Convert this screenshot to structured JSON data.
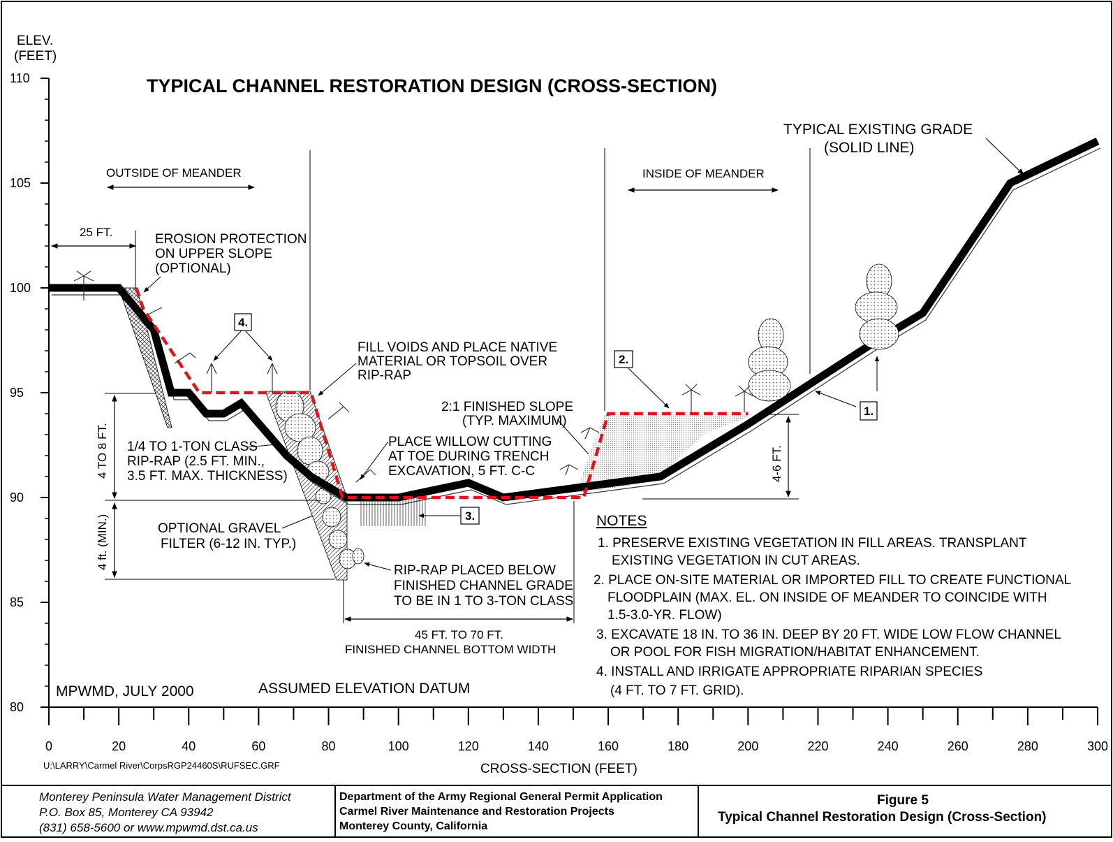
{
  "title": "TYPICAL CHANNEL RESTORATION DESIGN (CROSS-SECTION)",
  "y_axis": {
    "label_line1": "ELEV.",
    "label_line2": "(FEET)",
    "ticks": [
      "110",
      "105",
      "100",
      "95",
      "90",
      "85",
      "80"
    ]
  },
  "x_axis": {
    "label": "CROSS-SECTION (FEET)",
    "ticks": [
      "0",
      "20",
      "40",
      "60",
      "80",
      "100",
      "120",
      "140",
      "160",
      "180",
      "200",
      "220",
      "240",
      "260",
      "280",
      "300"
    ]
  },
  "labels": {
    "outside_meander": "OUTSIDE OF MEANDER",
    "inside_meander": "INSIDE OF MEANDER",
    "existing_grade_1": "TYPICAL EXISTING GRADE",
    "existing_grade_2": "(SOLID LINE)",
    "dim_25ft": "25 FT.",
    "erosion_1": "EROSION PROTECTION",
    "erosion_2": "ON UPPER SLOPE",
    "erosion_3": "(OPTIONAL)",
    "fill_voids_1": "FILL VOIDS AND PLACE NATIVE",
    "fill_voids_2": "MATERIAL OR TOPSOIL OVER",
    "fill_voids_3": "RIP-RAP",
    "finished_slope_1": "2:1 FINISHED SLOPE",
    "finished_slope_2": "(TYP. MAXIMUM)",
    "willow_1": "PLACE WILLOW CUTTING",
    "willow_2": "AT TOE DURING TRENCH",
    "willow_3": "EXCAVATION, 5 FT. C-C",
    "riprap_class_1": "1/4 TO 1-TON CLASS",
    "riprap_class_2": "RIP-RAP (2.5 FT. MIN.,",
    "riprap_class_3": "3.5 FT. MAX. THICKNESS)",
    "gravel_1": "OPTIONAL GRAVEL",
    "gravel_2": "FILTER (6-12 IN. TYP.)",
    "dim_4to8": "4 TO 8 FT.",
    "dim_4min": "4 ft. (MIN.)",
    "dim_4to6": "4-6 FT.",
    "riprap_below_1": "RIP-RAP PLACED BELOW",
    "riprap_below_2": "FINISHED CHANNEL GRADE",
    "riprap_below_3": "TO BE IN 1 TO 3-TON CLASS",
    "width_1": "45 FT. TO 70 FT.",
    "width_2": "FINISHED CHANNEL BOTTOM WIDTH",
    "mpwmd": "MPWMD, JULY 2000",
    "datum": "ASSUMED ELEVATION DATUM",
    "filepath": "U:\\LARRY\\Carmel River\\CorpsRGP24460S\\RUFSEC.GRF",
    "callout_1": "1.",
    "callout_2": "2.",
    "callout_3": "3.",
    "callout_4": "4."
  },
  "notes": {
    "heading": "NOTES",
    "lines": [
      "1. PRESERVE EXISTING VEGETATION IN FILL AREAS. TRANSPLANT",
      "EXISTING VEGETATION IN CUT AREAS.",
      "2. PLACE ON-SITE MATERIAL OR IMPORTED FILL TO CREATE FUNCTIONAL",
      "FLOODPLAIN (MAX. EL. ON INSIDE OF MEANDER TO COINCIDE WITH",
      "1.5-3.0-YR. FLOW)",
      "3. EXCAVATE 18 IN. TO 36 IN. DEEP BY 20 FT. WIDE LOW FLOW CHANNEL",
      "OR POOL FOR FISH MIGRATION/HABITAT ENHANCEMENT.",
      "4. INSTALL AND IRRIGATE APPROPRIATE RIPARIAN SPECIES",
      "(4 FT. TO 7 FT. GRID)."
    ]
  },
  "title_block": {
    "org_1": "Monterey Peninsula Water Management District",
    "org_2": "P.O. Box 85, Monterey  CA 93942",
    "org_3": "(831) 658-5600 or www.mpwmd.dst.ca.us",
    "proj_1": "Department of the Army Regional General Permit Application",
    "proj_2": "Carmel River Maintenance and Restoration Projects",
    "proj_3": "Monterey County, California",
    "fig_1": "Figure 5",
    "fig_2": "Typical Channel Restoration Design (Cross-Section)"
  },
  "colors": {
    "existing_grade": "#000000",
    "design_grade": "#e0141b",
    "fill_area": "#d9d9d9",
    "riprap": "#bdbdbd"
  },
  "chart_data": {
    "type": "line",
    "xlabel": "CROSS-SECTION (FEET)",
    "ylabel": "ELEV. (FEET)",
    "xlim": [
      0,
      300
    ],
    "ylim": [
      80,
      110
    ],
    "series": [
      {
        "name": "TYPICAL EXISTING GRADE",
        "x": [
          0,
          20,
          25,
          30,
          35,
          40,
          45,
          50,
          55,
          68,
          75,
          80,
          85,
          100,
          120,
          130,
          175,
          200,
          237,
          250,
          275,
          300
        ],
        "y": [
          100,
          100,
          99,
          98,
          95,
          95,
          94,
          94,
          94.5,
          92,
          91,
          90.5,
          90,
          90,
          90.7,
          90,
          91,
          93.5,
          97.5,
          98.8,
          105,
          107
        ]
      },
      {
        "x": [
          25,
          27,
          43,
          75,
          84,
          88,
          108,
          130,
          153,
          160,
          200
        ],
        "y": [
          100,
          99,
          95,
          95,
          90,
          90,
          90,
          90,
          90,
          94,
          94
        ]
      }
    ]
  }
}
